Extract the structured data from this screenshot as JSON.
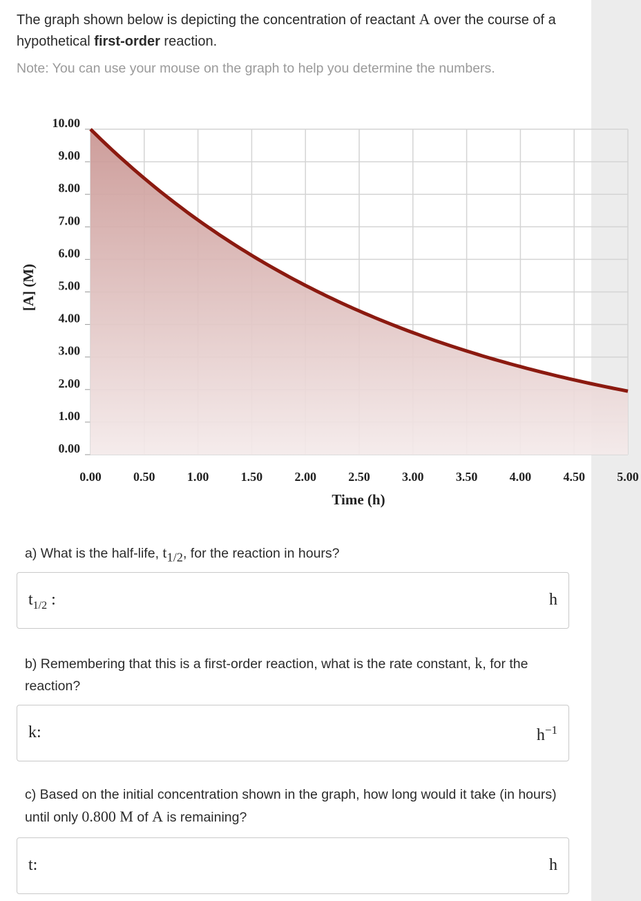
{
  "intro": {
    "text_before": "The graph shown below is depicting the concentration of reactant ",
    "var_A": "A",
    "text_middle": " over the course of a hypothetical ",
    "bold": "first-order",
    "text_after": " reaction."
  },
  "note": "Note: You can use your mouse on the graph to help you determine the numbers.",
  "chart_data": {
    "type": "area",
    "xlabel": "Time (h)",
    "ylabel": "[A] (M)",
    "xlim": [
      0,
      5
    ],
    "ylim": [
      0,
      10
    ],
    "x_ticks": [
      "0.00",
      "0.50",
      "1.00",
      "1.50",
      "2.00",
      "2.50",
      "3.00",
      "3.50",
      "4.00",
      "4.50",
      "5.00"
    ],
    "y_ticks": [
      "0.00",
      "1.00",
      "2.00",
      "3.00",
      "4.00",
      "5.00",
      "6.00",
      "7.00",
      "8.00",
      "9.00",
      "10.00"
    ],
    "series": [
      {
        "x": [
          0,
          0.5,
          1.0,
          1.5,
          2.0,
          2.5,
          3.0,
          3.5,
          4.0,
          4.5,
          5.0
        ],
        "y": [
          10.0,
          8.5,
          7.2,
          6.1,
          5.2,
          4.4,
          3.75,
          3.2,
          2.7,
          2.3,
          1.95
        ]
      }
    ],
    "grid": true,
    "colors": {
      "line": "#8b1a10",
      "fill_top": "#c99592",
      "fill_bottom": "#f4eaea",
      "grid": "#d4d4d4"
    }
  },
  "questions": {
    "a": {
      "prefix": "a) What is the half-life, ",
      "var": "t",
      "sub": "1/2",
      "suffix": ", for the reaction in hours?",
      "answer_label": "t",
      "answer_sub": "1/2",
      "answer_colon": " :",
      "unit": "h"
    },
    "b": {
      "prefix": "b) Remembering that this is a first-order reaction, what is the rate constant, ",
      "var": "k",
      "suffix": ", for the reaction?",
      "answer_label": "k:",
      "unit": "h",
      "unit_sup": "−1"
    },
    "c": {
      "prefix": "c) Based on the initial concentration shown in the graph, how long would it take (in hours) until only ",
      "value": "0.800 M",
      "middle": " of ",
      "var": "A",
      "suffix": " is remaining?",
      "answer_label": "t:",
      "unit": "h"
    }
  }
}
